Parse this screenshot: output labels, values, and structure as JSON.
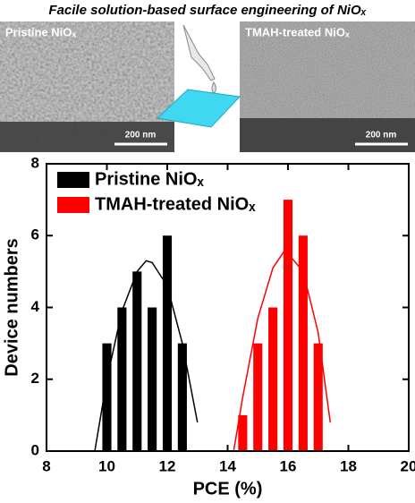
{
  "header": {
    "title": "Facile solution-based surface engineering of NiOₓ"
  },
  "images": [
    {
      "label": "Pristine NiOₓ",
      "scale": "200 nm"
    },
    {
      "label": "TMAH-treated NiOₓ",
      "scale": "200 nm"
    }
  ],
  "chart_data": {
    "type": "bar",
    "x_label": "PCE (%)",
    "y_label": "Device numbers",
    "xlim": [
      8,
      20
    ],
    "xticks": [
      8,
      10,
      12,
      14,
      16,
      18,
      20
    ],
    "ylim": [
      0,
      8
    ],
    "yticks": [
      0,
      2,
      4,
      6,
      8
    ],
    "legend": "upper left",
    "series": [
      {
        "name": "Pristine NiOₓ",
        "color": "#000000",
        "x": [
          10,
          10.5,
          11,
          11.5,
          12,
          12.5
        ],
        "values": [
          3,
          4,
          5,
          4,
          6,
          3
        ]
      },
      {
        "name": "TMAH-treated NiOₓ",
        "color": "#ff0000",
        "x": [
          14.5,
          15,
          15.5,
          16,
          16.5,
          17
        ],
        "values": [
          1,
          3,
          4,
          7,
          6,
          3
        ]
      }
    ],
    "fits": [
      {
        "color": "#000000",
        "x": [
          9.6,
          10,
          10.5,
          11,
          11.3,
          11.5,
          12,
          12.5,
          13
        ],
        "values": [
          0,
          2.0,
          3.9,
          5.0,
          5.3,
          5.25,
          4.6,
          3.0,
          0.8
        ]
      },
      {
        "color": "#ff0000",
        "x": [
          14.2,
          14.5,
          15,
          15.5,
          15.9,
          16.5,
          17,
          17.4
        ],
        "values": [
          0,
          1.5,
          3.7,
          5.1,
          5.6,
          5.0,
          3.3,
          0.8
        ]
      }
    ]
  }
}
